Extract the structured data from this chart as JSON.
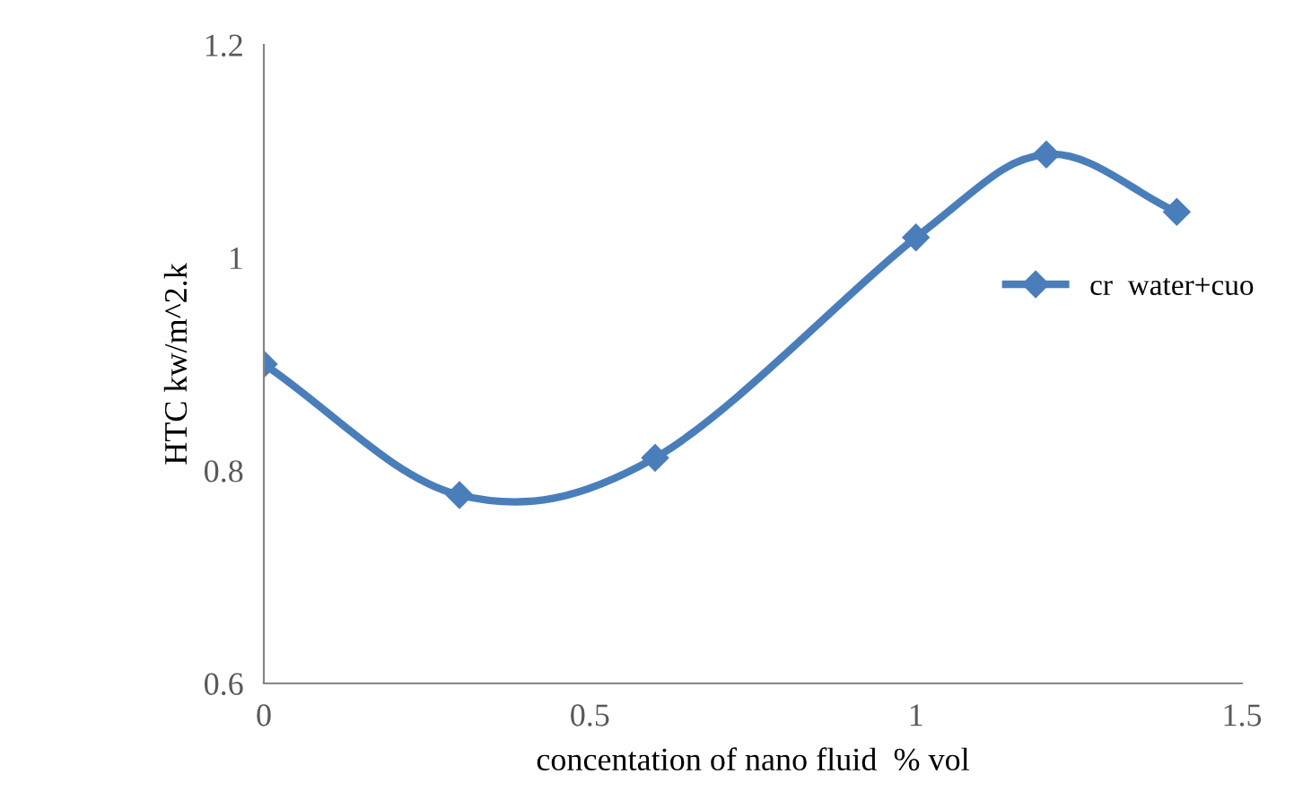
{
  "chart_data": {
    "type": "line",
    "xlabel": "concentation of nano fluid  % vol",
    "ylabel": "HTC kw/m^2.k",
    "x": [
      0,
      0.3,
      0.6,
      1.0,
      1.2,
      1.4
    ],
    "series": [
      {
        "name": "cr  water+cuo",
        "color": "#4a7ebb",
        "values": [
          0.9,
          0.777,
          0.812,
          1.019,
          1.097,
          1.043
        ]
      }
    ],
    "xlim": [
      0,
      1.5
    ],
    "xticks": [
      0,
      0.5,
      1,
      1.5
    ],
    "ylim": [
      0.6,
      1.2
    ],
    "yticks": [
      0.6,
      0.8,
      1,
      1.2
    ],
    "grid": false,
    "legend": "right",
    "marker": "diamond",
    "line_style": "solid"
  }
}
